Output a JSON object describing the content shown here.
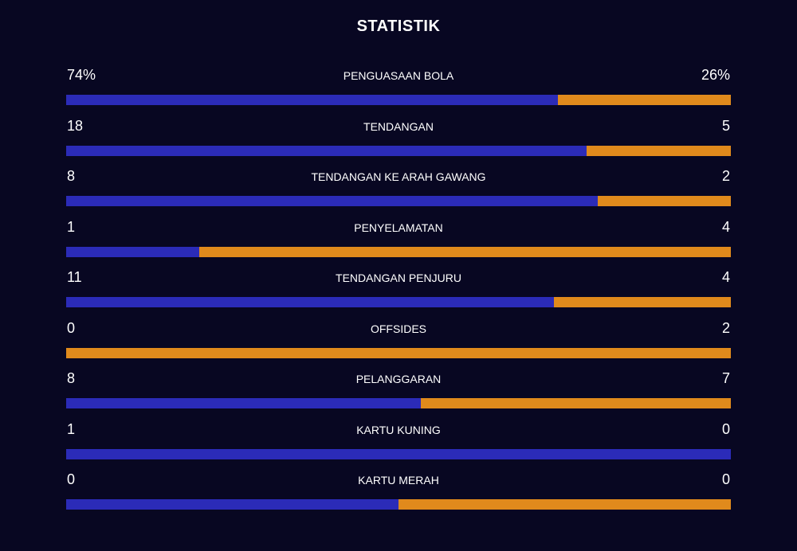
{
  "title": "STATISTIK",
  "colors": {
    "background": "#080722",
    "home": "#2b2bb8",
    "away": "#e08a1c"
  },
  "stats": [
    {
      "label": "PENGUASAAN BOLA",
      "home_display": "74%",
      "away_display": "26%",
      "home_share": 0.74
    },
    {
      "label": "TENDANGAN",
      "home_display": "18",
      "away_display": "5",
      "home_share": 0.7826
    },
    {
      "label": "TENDANGAN KE ARAH GAWANG",
      "home_display": "8",
      "away_display": "2",
      "home_share": 0.8
    },
    {
      "label": "PENYELAMATAN",
      "home_display": "1",
      "away_display": "4",
      "home_share": 0.2
    },
    {
      "label": "TENDANGAN PENJURU",
      "home_display": "11",
      "away_display": "4",
      "home_share": 0.7333
    },
    {
      "label": "OFFSIDES",
      "home_display": "0",
      "away_display": "2",
      "home_share": 0.0
    },
    {
      "label": "PELANGGARAN",
      "home_display": "8",
      "away_display": "7",
      "home_share": 0.5333
    },
    {
      "label": "KARTU KUNING",
      "home_display": "1",
      "away_display": "0",
      "home_share": 1.0
    },
    {
      "label": "KARTU MERAH",
      "home_display": "0",
      "away_display": "0",
      "home_share": 0.5
    }
  ]
}
